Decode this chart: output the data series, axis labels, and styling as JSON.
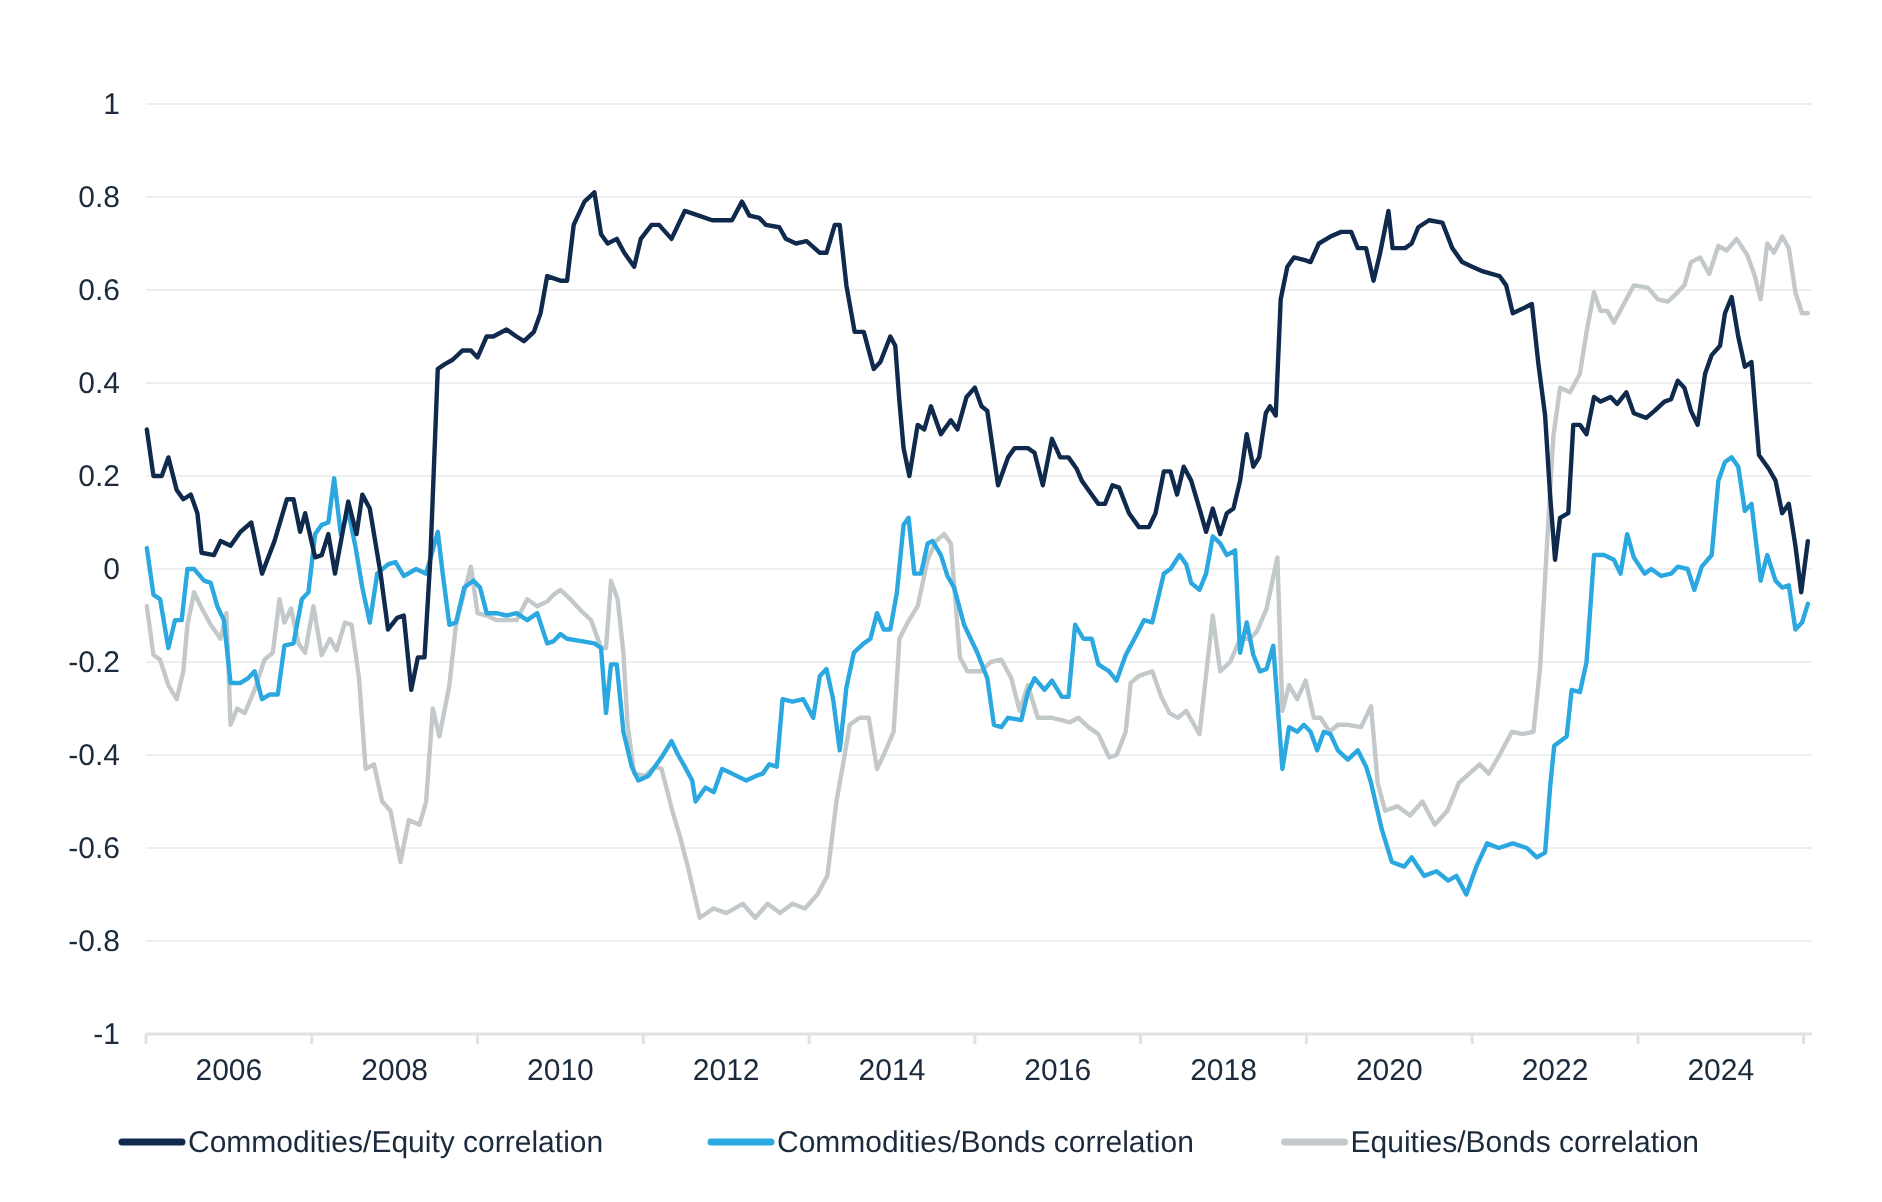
{
  "chart_data": {
    "type": "line",
    "xlim": [
      2005,
      2025.1
    ],
    "ylim": [
      -1,
      1
    ],
    "yticks": [
      -1,
      -0.8,
      -0.6,
      -0.4,
      -0.2,
      0,
      0.2,
      0.4,
      0.6,
      0.8,
      1
    ],
    "xticks": [
      {
        "value": 2005,
        "label": null
      },
      2006,
      {
        "value": 2007,
        "label": null
      },
      2008,
      {
        "value": 2009,
        "label": null
      },
      2010,
      {
        "value": 2011,
        "label": null
      },
      2012,
      {
        "value": 2013,
        "label": null
      },
      2014,
      {
        "value": 2015,
        "label": null
      },
      2016,
      {
        "value": 2017,
        "label": null
      },
      2018,
      {
        "value": 2019,
        "label": null
      },
      2020,
      {
        "value": 2021,
        "label": null
      },
      2022,
      {
        "value": 2023,
        "label": null
      },
      2024,
      {
        "value": 2025,
        "label": null
      }
    ],
    "grid": "y",
    "legend": "bottom",
    "marker": "none",
    "line_style": "solid",
    "series": [
      {
        "name": "Commodities/Equity correlation",
        "color": "#0f2a4c",
        "x": [
          2005.01,
          2005.09,
          2005.19,
          2005.27,
          2005.37,
          2005.45,
          2005.54,
          2005.62,
          2005.67,
          2005.82,
          2005.9,
          2006.02,
          2006.14,
          2006.27,
          2006.4,
          2006.55,
          2006.7,
          2006.78,
          2006.86,
          2006.92,
          2007.04,
          2007.12,
          2007.2,
          2007.28,
          2007.44,
          2007.54,
          2007.61,
          2007.7,
          2007.83,
          2007.92,
          2008.03,
          2008.11,
          2008.2,
          2008.28,
          2008.36,
          2008.43,
          2008.52,
          2008.6,
          2008.7,
          2008.82,
          2008.92,
          2009.0,
          2009.11,
          2009.19,
          2009.35,
          2009.47,
          2009.56,
          2009.68,
          2009.76,
          2009.84,
          2010.0,
          2010.08,
          2010.16,
          2010.29,
          2010.41,
          2010.49,
          2010.57,
          2010.68,
          2010.77,
          2010.89,
          2010.97,
          2011.1,
          2011.19,
          2011.34,
          2011.5,
          2011.67,
          2011.83,
          2012.07,
          2012.19,
          2012.28,
          2012.4,
          2012.48,
          2012.64,
          2012.72,
          2012.84,
          2012.97,
          2013.13,
          2013.21,
          2013.31,
          2013.37,
          2013.45,
          2013.55,
          2013.66,
          2013.78,
          2013.86,
          2013.98,
          2014.04,
          2014.09,
          2014.14,
          2014.21,
          2014.31,
          2014.39,
          2014.47,
          2014.59,
          2014.71,
          2014.79,
          2014.9,
          2015.0,
          2015.08,
          2015.15,
          2015.28,
          2015.4,
          2015.48,
          2015.64,
          2015.72,
          2015.82,
          2015.93,
          2016.03,
          2016.13,
          2016.23,
          2016.29,
          2016.37,
          2016.49,
          2016.57,
          2016.66,
          2016.74,
          2016.86,
          2016.98,
          2017.1,
          2017.18,
          2017.28,
          2017.36,
          2017.44,
          2017.52,
          2017.61,
          2017.71,
          2017.79,
          2017.87,
          2017.96,
          2018.04,
          2018.12,
          2018.2,
          2018.28,
          2018.36,
          2018.43,
          2018.51,
          2018.56,
          2018.63,
          2018.69,
          2018.77,
          2018.85,
          2018.97,
          2019.05,
          2019.15,
          2019.29,
          2019.42,
          2019.54,
          2019.62,
          2019.72,
          2019.81,
          2019.89,
          2019.99,
          2020.04,
          2020.19,
          2020.27,
          2020.35,
          2020.48,
          2020.64,
          2020.76,
          2020.88,
          2021.0,
          2021.13,
          2021.33,
          2021.41,
          2021.49,
          2021.61,
          2021.72,
          2021.8,
          2021.88,
          2021.94,
          2022.0,
          2022.06,
          2022.16,
          2022.22,
          2022.3,
          2022.38,
          2022.47,
          2022.55,
          2022.67,
          2022.75,
          2022.86,
          2022.95,
          2023.1,
          2023.2,
          2023.32,
          2023.4,
          2023.48,
          2023.56,
          2023.64,
          2023.72,
          2023.81,
          2023.89,
          2023.99,
          2024.05,
          2024.13,
          2024.21,
          2024.29,
          2024.37,
          2024.46,
          2024.58,
          2024.66,
          2024.74,
          2024.82,
          2024.9,
          2024.97,
          2025.05
        ],
        "values": [
          0.3,
          0.2,
          0.2,
          0.24,
          0.17,
          0.15,
          0.16,
          0.12,
          0.035,
          0.03,
          0.06,
          0.05,
          0.08,
          0.1,
          -0.01,
          0.06,
          0.15,
          0.15,
          0.08,
          0.12,
          0.025,
          0.03,
          0.075,
          -0.01,
          0.145,
          0.075,
          0.16,
          0.13,
          -0.01,
          -0.13,
          -0.105,
          -0.1,
          -0.26,
          -0.19,
          -0.19,
          0.02,
          0.43,
          0.44,
          0.45,
          0.47,
          0.47,
          0.455,
          0.5,
          0.5,
          0.515,
          0.5,
          0.49,
          0.51,
          0.55,
          0.63,
          0.62,
          0.62,
          0.74,
          0.79,
          0.81,
          0.72,
          0.7,
          0.71,
          0.68,
          0.65,
          0.71,
          0.74,
          0.74,
          0.71,
          0.77,
          0.76,
          0.75,
          0.75,
          0.79,
          0.76,
          0.755,
          0.74,
          0.735,
          0.71,
          0.7,
          0.705,
          0.68,
          0.68,
          0.74,
          0.74,
          0.61,
          0.51,
          0.51,
          0.43,
          0.445,
          0.5,
          0.48,
          0.36,
          0.26,
          0.2,
          0.31,
          0.3,
          0.35,
          0.29,
          0.32,
          0.3,
          0.37,
          0.39,
          0.35,
          0.34,
          0.18,
          0.24,
          0.26,
          0.26,
          0.25,
          0.18,
          0.28,
          0.24,
          0.24,
          0.215,
          0.19,
          0.17,
          0.14,
          0.14,
          0.18,
          0.175,
          0.12,
          0.09,
          0.09,
          0.12,
          0.21,
          0.21,
          0.16,
          0.22,
          0.19,
          0.13,
          0.08,
          0.13,
          0.075,
          0.12,
          0.13,
          0.19,
          0.29,
          0.22,
          0.24,
          0.335,
          0.35,
          0.33,
          0.58,
          0.65,
          0.67,
          0.665,
          0.66,
          0.7,
          0.715,
          0.725,
          0.725,
          0.69,
          0.69,
          0.62,
          0.68,
          0.77,
          0.69,
          0.69,
          0.7,
          0.735,
          0.75,
          0.745,
          0.69,
          0.66,
          0.65,
          0.64,
          0.63,
          0.61,
          0.55,
          0.56,
          0.57,
          0.44,
          0.33,
          0.16,
          0.02,
          0.11,
          0.12,
          0.31,
          0.31,
          0.29,
          0.37,
          0.36,
          0.37,
          0.355,
          0.38,
          0.335,
          0.325,
          0.34,
          0.36,
          0.365,
          0.405,
          0.39,
          0.34,
          0.31,
          0.42,
          0.46,
          0.48,
          0.55,
          0.585,
          0.5,
          0.435,
          0.445,
          0.245,
          0.215,
          0.19,
          0.12,
          0.14,
          0.05,
          -0.05,
          0.06
        ]
      },
      {
        "name": "Commodities/Bonds correlation",
        "color": "#2aa8df",
        "x": [
          2005.01,
          2005.09,
          2005.17,
          2005.27,
          2005.35,
          2005.43,
          2005.5,
          2005.58,
          2005.7,
          2005.78,
          2005.86,
          2005.94,
          2006.02,
          2006.14,
          2006.23,
          2006.31,
          2006.4,
          2006.49,
          2006.59,
          2006.67,
          2006.78,
          2006.88,
          2006.96,
          2007.04,
          2007.12,
          2007.2,
          2007.27,
          2007.35,
          2007.44,
          2007.53,
          2007.61,
          2007.7,
          2007.79,
          2007.92,
          2008.01,
          2008.11,
          2008.26,
          2008.38,
          2008.52,
          2008.58,
          2008.66,
          2008.74,
          2008.84,
          2008.95,
          2009.03,
          2009.11,
          2009.23,
          2009.35,
          2009.47,
          2009.6,
          2009.72,
          2009.84,
          2009.92,
          2010.0,
          2010.08,
          2010.25,
          2010.41,
          2010.49,
          2010.55,
          2010.61,
          2010.68,
          2010.76,
          2010.86,
          2010.94,
          2011.06,
          2011.22,
          2011.34,
          2011.42,
          2011.5,
          2011.59,
          2011.63,
          2011.75,
          2011.85,
          2011.95,
          2012.07,
          2012.24,
          2012.36,
          2012.44,
          2012.52,
          2012.61,
          2012.68,
          2012.8,
          2012.93,
          2013.05,
          2013.13,
          2013.21,
          2013.29,
          2013.37,
          2013.45,
          2013.54,
          2013.66,
          2013.74,
          2013.82,
          2013.9,
          2013.98,
          2014.06,
          2014.14,
          2014.2,
          2014.27,
          2014.35,
          2014.43,
          2014.49,
          2014.59,
          2014.67,
          2014.75,
          2014.87,
          2015.03,
          2015.15,
          2015.23,
          2015.32,
          2015.4,
          2015.56,
          2015.64,
          2015.72,
          2015.84,
          2015.93,
          2016.05,
          2016.13,
          2016.21,
          2016.31,
          2016.41,
          2016.49,
          2016.62,
          2016.71,
          2016.82,
          2016.94,
          2017.04,
          2017.14,
          2017.28,
          2017.36,
          2017.47,
          2017.55,
          2017.61,
          2017.71,
          2017.79,
          2017.87,
          2017.96,
          2018.04,
          2018.14,
          2018.2,
          2018.28,
          2018.36,
          2018.44,
          2018.52,
          2018.6,
          2018.71,
          2018.79,
          2018.89,
          2018.97,
          2019.05,
          2019.13,
          2019.21,
          2019.29,
          2019.38,
          2019.5,
          2019.62,
          2019.72,
          2019.78,
          2019.91,
          2020.03,
          2020.18,
          2020.27,
          2020.42,
          2020.57,
          2020.71,
          2020.81,
          2020.93,
          2021.05,
          2021.18,
          2021.32,
          2021.49,
          2021.66,
          2021.78,
          2021.88,
          2021.94,
          2021.99,
          2022.14,
          2022.2,
          2022.3,
          2022.38,
          2022.47,
          2022.59,
          2022.71,
          2022.79,
          2022.87,
          2022.95,
          2023.08,
          2023.16,
          2023.28,
          2023.4,
          2023.48,
          2023.6,
          2023.68,
          2023.77,
          2023.89,
          2023.97,
          2024.05,
          2024.13,
          2024.21,
          2024.29,
          2024.37,
          2024.48,
          2024.56,
          2024.66,
          2024.74,
          2024.82,
          2024.9,
          2024.98,
          2025.05
        ],
        "values": [
          0.045,
          -0.055,
          -0.065,
          -0.17,
          -0.11,
          -0.11,
          0.0,
          0.0,
          -0.025,
          -0.03,
          -0.08,
          -0.11,
          -0.245,
          -0.245,
          -0.235,
          -0.22,
          -0.28,
          -0.27,
          -0.27,
          -0.165,
          -0.16,
          -0.065,
          -0.05,
          0.075,
          0.095,
          0.1,
          0.195,
          0.075,
          0.125,
          0.045,
          -0.04,
          -0.115,
          -0.01,
          0.01,
          0.015,
          -0.015,
          0.0,
          -0.01,
          0.08,
          -0.01,
          -0.12,
          -0.115,
          -0.04,
          -0.025,
          -0.04,
          -0.095,
          -0.095,
          -0.1,
          -0.095,
          -0.11,
          -0.095,
          -0.16,
          -0.155,
          -0.14,
          -0.15,
          -0.155,
          -0.16,
          -0.17,
          -0.31,
          -0.205,
          -0.205,
          -0.35,
          -0.425,
          -0.455,
          -0.445,
          -0.405,
          -0.37,
          -0.4,
          -0.425,
          -0.455,
          -0.5,
          -0.47,
          -0.48,
          -0.43,
          -0.44,
          -0.455,
          -0.445,
          -0.44,
          -0.42,
          -0.425,
          -0.28,
          -0.285,
          -0.28,
          -0.32,
          -0.23,
          -0.215,
          -0.28,
          -0.39,
          -0.255,
          -0.18,
          -0.16,
          -0.15,
          -0.095,
          -0.13,
          -0.13,
          -0.05,
          0.095,
          0.11,
          -0.01,
          -0.01,
          0.055,
          0.06,
          0.03,
          -0.015,
          -0.04,
          -0.12,
          -0.18,
          -0.235,
          -0.335,
          -0.34,
          -0.32,
          -0.325,
          -0.265,
          -0.235,
          -0.26,
          -0.24,
          -0.275,
          -0.275,
          -0.12,
          -0.15,
          -0.15,
          -0.205,
          -0.22,
          -0.24,
          -0.185,
          -0.145,
          -0.11,
          -0.115,
          -0.01,
          0.0,
          0.03,
          0.01,
          -0.03,
          -0.045,
          -0.01,
          0.07,
          0.055,
          0.03,
          0.04,
          -0.18,
          -0.115,
          -0.185,
          -0.22,
          -0.215,
          -0.165,
          -0.43,
          -0.34,
          -0.35,
          -0.335,
          -0.35,
          -0.39,
          -0.35,
          -0.355,
          -0.39,
          -0.41,
          -0.39,
          -0.425,
          -0.46,
          -0.56,
          -0.63,
          -0.64,
          -0.62,
          -0.66,
          -0.65,
          -0.67,
          -0.66,
          -0.7,
          -0.64,
          -0.59,
          -0.6,
          -0.59,
          -0.6,
          -0.62,
          -0.61,
          -0.47,
          -0.38,
          -0.36,
          -0.26,
          -0.265,
          -0.2,
          0.03,
          0.03,
          0.02,
          -0.01,
          0.075,
          0.025,
          -0.01,
          0.0,
          -0.015,
          -0.01,
          0.005,
          0.0,
          -0.045,
          0.005,
          0.03,
          0.19,
          0.23,
          0.24,
          0.22,
          0.125,
          0.14,
          -0.025,
          0.03,
          -0.025,
          -0.04,
          -0.035,
          -0.13,
          -0.115,
          -0.075
        ]
      },
      {
        "name": "Equities/Bonds correlation",
        "color": "#c3c8cb",
        "x": [
          2005.01,
          2005.09,
          2005.17,
          2005.27,
          2005.37,
          2005.45,
          2005.5,
          2005.58,
          2005.66,
          2005.78,
          2005.9,
          2005.97,
          2006.02,
          2006.1,
          2006.19,
          2006.31,
          2006.43,
          2006.53,
          2006.61,
          2006.67,
          2006.75,
          2006.84,
          2006.92,
          2007.02,
          2007.12,
          2007.22,
          2007.3,
          2007.4,
          2007.48,
          2007.57,
          2007.65,
          2007.75,
          2007.85,
          2007.95,
          2008.07,
          2008.17,
          2008.3,
          2008.38,
          2008.46,
          2008.54,
          2008.66,
          2008.74,
          2008.84,
          2008.92,
          2009.0,
          2009.11,
          2009.23,
          2009.35,
          2009.47,
          2009.6,
          2009.72,
          2009.84,
          2009.92,
          2010.0,
          2010.12,
          2010.25,
          2010.37,
          2010.49,
          2010.55,
          2010.61,
          2010.69,
          2010.76,
          2010.81,
          2010.89,
          2011.02,
          2011.14,
          2011.22,
          2011.35,
          2011.45,
          2011.55,
          2011.68,
          2011.85,
          2012.0,
          2012.2,
          2012.35,
          2012.5,
          2012.65,
          2012.8,
          2012.95,
          2013.1,
          2013.22,
          2013.33,
          2013.41,
          2013.49,
          2013.61,
          2013.72,
          2013.82,
          2013.9,
          2014.02,
          2014.09,
          2014.19,
          2014.31,
          2014.43,
          2014.53,
          2014.63,
          2014.71,
          2014.82,
          2014.91,
          2015.07,
          2015.19,
          2015.32,
          2015.44,
          2015.54,
          2015.64,
          2015.76,
          2015.93,
          2016.05,
          2016.14,
          2016.25,
          2016.37,
          2016.49,
          2016.62,
          2016.71,
          2016.82,
          2016.88,
          2016.98,
          2017.14,
          2017.25,
          2017.35,
          2017.45,
          2017.55,
          2017.71,
          2017.87,
          2017.96,
          2018.08,
          2018.2,
          2018.32,
          2018.4,
          2018.52,
          2018.65,
          2018.71,
          2018.79,
          2018.89,
          2018.99,
          2019.09,
          2019.17,
          2019.28,
          2019.38,
          2019.5,
          2019.66,
          2019.78,
          2019.86,
          2019.95,
          2020.1,
          2020.25,
          2020.4,
          2020.55,
          2020.7,
          2020.84,
          2021.09,
          2021.2,
          2021.33,
          2021.48,
          2021.61,
          2021.74,
          2021.82,
          2021.9,
          2021.98,
          2022.06,
          2022.18,
          2022.3,
          2022.38,
          2022.47,
          2022.55,
          2022.63,
          2022.71,
          2022.83,
          2022.95,
          2023.12,
          2023.24,
          2023.36,
          2023.48,
          2023.56,
          2023.64,
          2023.75,
          2023.86,
          2023.97,
          2024.07,
          2024.19,
          2024.32,
          2024.41,
          2024.48,
          2024.56,
          2024.64,
          2024.74,
          2024.82,
          2024.9,
          2024.98,
          2025.05
        ],
        "values": [
          -0.08,
          -0.185,
          -0.195,
          -0.25,
          -0.28,
          -0.22,
          -0.12,
          -0.05,
          -0.08,
          -0.12,
          -0.15,
          -0.095,
          -0.335,
          -0.3,
          -0.31,
          -0.26,
          -0.195,
          -0.18,
          -0.065,
          -0.115,
          -0.085,
          -0.16,
          -0.18,
          -0.08,
          -0.185,
          -0.15,
          -0.175,
          -0.115,
          -0.12,
          -0.235,
          -0.43,
          -0.42,
          -0.5,
          -0.52,
          -0.63,
          -0.54,
          -0.55,
          -0.5,
          -0.3,
          -0.36,
          -0.25,
          -0.12,
          -0.05,
          0.005,
          -0.095,
          -0.1,
          -0.11,
          -0.11,
          -0.11,
          -0.065,
          -0.08,
          -0.07,
          -0.055,
          -0.045,
          -0.065,
          -0.09,
          -0.11,
          -0.17,
          -0.17,
          -0.025,
          -0.065,
          -0.18,
          -0.335,
          -0.44,
          -0.445,
          -0.425,
          -0.43,
          -0.52,
          -0.58,
          -0.65,
          -0.75,
          -0.73,
          -0.74,
          -0.72,
          -0.75,
          -0.72,
          -0.74,
          -0.72,
          -0.73,
          -0.7,
          -0.66,
          -0.5,
          -0.42,
          -0.335,
          -0.32,
          -0.32,
          -0.43,
          -0.4,
          -0.35,
          -0.15,
          -0.115,
          -0.08,
          0.02,
          0.06,
          0.075,
          0.055,
          -0.19,
          -0.22,
          -0.22,
          -0.2,
          -0.195,
          -0.235,
          -0.305,
          -0.25,
          -0.32,
          -0.32,
          -0.325,
          -0.33,
          -0.32,
          -0.34,
          -0.355,
          -0.405,
          -0.4,
          -0.35,
          -0.245,
          -0.23,
          -0.22,
          -0.275,
          -0.31,
          -0.32,
          -0.305,
          -0.355,
          -0.1,
          -0.22,
          -0.2,
          -0.15,
          -0.15,
          -0.135,
          -0.085,
          0.025,
          -0.305,
          -0.25,
          -0.28,
          -0.24,
          -0.32,
          -0.32,
          -0.35,
          -0.335,
          -0.335,
          -0.34,
          -0.295,
          -0.46,
          -0.52,
          -0.51,
          -0.53,
          -0.5,
          -0.55,
          -0.52,
          -0.46,
          -0.42,
          -0.44,
          -0.4,
          -0.35,
          -0.355,
          -0.35,
          -0.21,
          0.045,
          0.285,
          0.39,
          0.38,
          0.42,
          0.51,
          0.595,
          0.555,
          0.555,
          0.53,
          0.57,
          0.61,
          0.605,
          0.58,
          0.575,
          0.595,
          0.61,
          0.66,
          0.67,
          0.635,
          0.695,
          0.685,
          0.71,
          0.675,
          0.63,
          0.58,
          0.7,
          0.68,
          0.715,
          0.69,
          0.595,
          0.55,
          0.55
        ]
      }
    ]
  }
}
